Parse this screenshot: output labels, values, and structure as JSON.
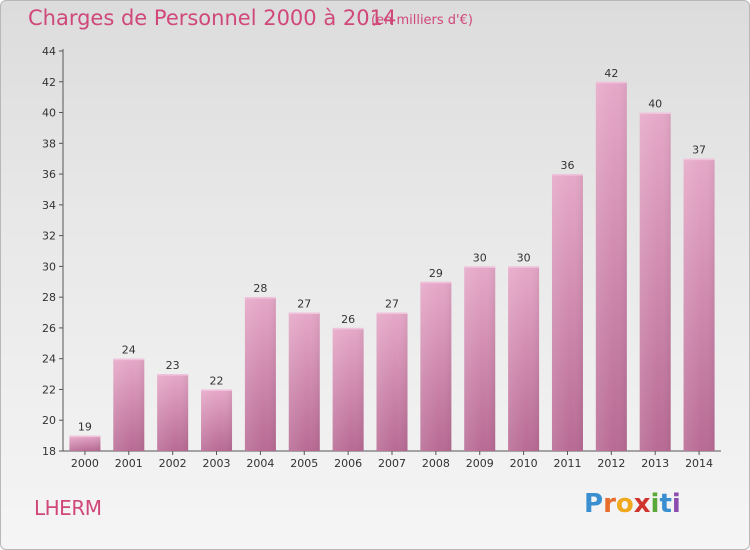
{
  "title": "Charges de Personnel 2000 à 2014",
  "subtitle": "(en milliers d'€)",
  "commune": "LHERM",
  "logo": {
    "letters": [
      {
        "ch": "P",
        "color": "#3a8fd0"
      },
      {
        "ch": "r",
        "color": "#e86c2c"
      },
      {
        "ch": "o",
        "color": "#f0a81c"
      },
      {
        "ch": "x",
        "color": "#d0342c"
      },
      {
        "ch": "i",
        "color": "#5aa83a"
      },
      {
        "ch": "t",
        "color": "#3a8fd0"
      },
      {
        "ch": "i",
        "color": "#8c4cb0"
      }
    ]
  },
  "chart_data": {
    "type": "bar",
    "categories": [
      "2000",
      "2001",
      "2002",
      "2003",
      "2004",
      "2005",
      "2006",
      "2007",
      "2008",
      "2009",
      "2010",
      "2011",
      "2012",
      "2013",
      "2014"
    ],
    "values": [
      19,
      24,
      23,
      22,
      28,
      27,
      26,
      27,
      29,
      30,
      30,
      36,
      42,
      40,
      37
    ],
    "ylim": [
      18,
      44
    ],
    "yticks": [
      18,
      20,
      22,
      24,
      26,
      28,
      30,
      32,
      34,
      36,
      38,
      40,
      42,
      44
    ],
    "grid": false,
    "bar_color": "#c9749e"
  }
}
